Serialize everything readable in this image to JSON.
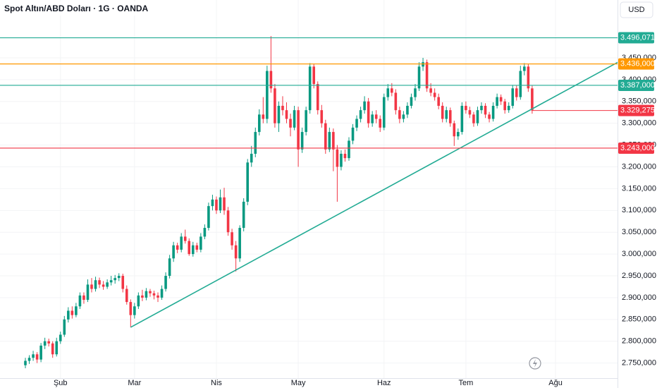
{
  "chart_data": {
    "type": "candlestick",
    "title": "Spot Altın/ABD Doları · 1G · OANDA",
    "currency": "USD",
    "up_color": "#089981",
    "down_color": "#f23645",
    "ylim": [
      2715.4,
      3582.7
    ],
    "xlim": [
      -6.51,
      151.9
    ],
    "yticks": [
      {
        "value": 2750,
        "label": "2.750,000"
      },
      {
        "value": 2800,
        "label": "2.800,000"
      },
      {
        "value": 2850,
        "label": "2.850,000"
      },
      {
        "value": 2900,
        "label": "2.900,000"
      },
      {
        "value": 2950,
        "label": "2.950,000"
      },
      {
        "value": 3000,
        "label": "3.000,000"
      },
      {
        "value": 3050,
        "label": "3.050,000"
      },
      {
        "value": 3100,
        "label": "3.100,000"
      },
      {
        "value": 3150,
        "label": "3.150,000"
      },
      {
        "value": 3200,
        "label": "3.200,000"
      },
      {
        "value": 3250,
        "label": "3.250,000"
      },
      {
        "value": 3300,
        "label": "3.300,000"
      },
      {
        "value": 3350,
        "label": "3.350,000"
      },
      {
        "value": 3400,
        "label": "3.400,000"
      },
      {
        "value": 3450,
        "label": "3.450,000"
      }
    ],
    "xlabels": [
      {
        "index": 9,
        "label": "Şub"
      },
      {
        "index": 28,
        "label": "Mar"
      },
      {
        "index": 49,
        "label": "Nis"
      },
      {
        "index": 70,
        "label": "May"
      },
      {
        "index": 92,
        "label": "Haz"
      },
      {
        "index": 113,
        "label": "Tem"
      },
      {
        "index": 136,
        "label": "Ağu"
      }
    ],
    "levels": [
      {
        "value": 3496.071,
        "label": "3.496,071",
        "color": "#22ab94"
      },
      {
        "value": 3436,
        "label": "3.436,000",
        "color": "#ff9800"
      },
      {
        "value": 3387,
        "label": "3.387,000",
        "color": "#22ab94"
      },
      {
        "value": 3243,
        "label": "3.243,000",
        "color": "#f23645"
      }
    ],
    "last_price": {
      "value": 3329.275,
      "label": "3.329,275",
      "color": "#f23645"
    },
    "trendline": {
      "from": {
        "index": 27,
        "price": 2832
      },
      "to": {
        "index": 152,
        "price": 3440
      },
      "color": "#22ab94"
    },
    "candles": [
      [
        2745,
        2762,
        2738,
        2755
      ],
      [
        2755,
        2768,
        2748,
        2762
      ],
      [
        2762,
        2778,
        2755,
        2770
      ],
      [
        2770,
        2775,
        2750,
        2758
      ],
      [
        2758,
        2796,
        2752,
        2790
      ],
      [
        2790,
        2808,
        2782,
        2800
      ],
      [
        2800,
        2806,
        2788,
        2795
      ],
      [
        2795,
        2800,
        2762,
        2770
      ],
      [
        2770,
        2808,
        2765,
        2800
      ],
      [
        2800,
        2822,
        2794,
        2815
      ],
      [
        2815,
        2858,
        2810,
        2850
      ],
      [
        2850,
        2878,
        2843,
        2870
      ],
      [
        2870,
        2880,
        2852,
        2860
      ],
      [
        2860,
        2888,
        2855,
        2880
      ],
      [
        2880,
        2912,
        2874,
        2905
      ],
      [
        2905,
        2912,
        2886,
        2895
      ],
      [
        2895,
        2942,
        2890,
        2930
      ],
      [
        2930,
        2945,
        2912,
        2920
      ],
      [
        2920,
        2948,
        2914,
        2940
      ],
      [
        2940,
        2946,
        2922,
        2930
      ],
      [
        2930,
        2938,
        2918,
        2925
      ],
      [
        2925,
        2942,
        2920,
        2935
      ],
      [
        2935,
        2950,
        2928,
        2940
      ],
      [
        2940,
        2952,
        2932,
        2945
      ],
      [
        2945,
        2956,
        2938,
        2950
      ],
      [
        2950,
        2955,
        2912,
        2920
      ],
      [
        2920,
        2928,
        2884,
        2890
      ],
      [
        2890,
        2896,
        2832,
        2860
      ],
      [
        2860,
        2888,
        2852,
        2880
      ],
      [
        2880,
        2912,
        2874,
        2905
      ],
      [
        2905,
        2918,
        2892,
        2900
      ],
      [
        2900,
        2922,
        2894,
        2915
      ],
      [
        2915,
        2920,
        2902,
        2910
      ],
      [
        2910,
        2916,
        2896,
        2905
      ],
      [
        2905,
        2912,
        2890,
        2900
      ],
      [
        2900,
        2928,
        2895,
        2920
      ],
      [
        2920,
        2958,
        2914,
        2950
      ],
      [
        2950,
        2998,
        2944,
        2990
      ],
      [
        2990,
        3028,
        2982,
        3020
      ],
      [
        3020,
        3026,
        3002,
        3010
      ],
      [
        3010,
        3048,
        3004,
        3040
      ],
      [
        3040,
        3056,
        3024,
        3030
      ],
      [
        3030,
        3036,
        2996,
        3000
      ],
      [
        3000,
        3028,
        2994,
        3020
      ],
      [
        3020,
        3026,
        3004,
        3010
      ],
      [
        3010,
        3048,
        3004,
        3040
      ],
      [
        3040,
        3068,
        3034,
        3060
      ],
      [
        3060,
        3118,
        3054,
        3110
      ],
      [
        3110,
        3136,
        3100,
        3125
      ],
      [
        3125,
        3132,
        3092,
        3100
      ],
      [
        3100,
        3148,
        3094,
        3130
      ],
      [
        3130,
        3152,
        3090,
        3100
      ],
      [
        3100,
        3108,
        3042,
        3050
      ],
      [
        3050,
        3058,
        3010,
        3020
      ],
      [
        3020,
        3030,
        2960,
        2990
      ],
      [
        2990,
        3066,
        2982,
        3060
      ],
      [
        3060,
        3128,
        3052,
        3120
      ],
      [
        3120,
        3218,
        3112,
        3210
      ],
      [
        3210,
        3248,
        3200,
        3230
      ],
      [
        3230,
        3290,
        3222,
        3280
      ],
      [
        3280,
        3332,
        3272,
        3320
      ],
      [
        3320,
        3360,
        3300,
        3310
      ],
      [
        3310,
        3432,
        3300,
        3420
      ],
      [
        3420,
        3500,
        3370,
        3380
      ],
      [
        3380,
        3390,
        3290,
        3300
      ],
      [
        3300,
        3350,
        3280,
        3340
      ],
      [
        3340,
        3362,
        3318,
        3330
      ],
      [
        3330,
        3348,
        3300,
        3310
      ],
      [
        3310,
        3322,
        3270,
        3290
      ],
      [
        3290,
        3340,
        3284,
        3330
      ],
      [
        3330,
        3338,
        3200,
        3240
      ],
      [
        3240,
        3290,
        3232,
        3280
      ],
      [
        3280,
        3338,
        3272,
        3330
      ],
      [
        3330,
        3438,
        3322,
        3430
      ],
      [
        3430,
        3436,
        3380,
        3390
      ],
      [
        3390,
        3396,
        3320,
        3330
      ],
      [
        3330,
        3342,
        3290,
        3300
      ],
      [
        3300,
        3308,
        3230,
        3240
      ],
      [
        3240,
        3290,
        3234,
        3280
      ],
      [
        3280,
        3288,
        3190,
        3240
      ],
      [
        3240,
        3250,
        3120,
        3200
      ],
      [
        3200,
        3238,
        3192,
        3230
      ],
      [
        3230,
        3240,
        3212,
        3220
      ],
      [
        3220,
        3268,
        3214,
        3260
      ],
      [
        3260,
        3298,
        3252,
        3290
      ],
      [
        3290,
        3318,
        3282,
        3310
      ],
      [
        3310,
        3338,
        3302,
        3330
      ],
      [
        3330,
        3362,
        3322,
        3350
      ],
      [
        3350,
        3358,
        3290,
        3300
      ],
      [
        3300,
        3328,
        3292,
        3320
      ],
      [
        3320,
        3330,
        3300,
        3310
      ],
      [
        3310,
        3318,
        3280,
        3290
      ],
      [
        3290,
        3368,
        3284,
        3360
      ],
      [
        3360,
        3390,
        3352,
        3380
      ],
      [
        3380,
        3392,
        3362,
        3370
      ],
      [
        3370,
        3378,
        3320,
        3330
      ],
      [
        3330,
        3338,
        3300,
        3310
      ],
      [
        3310,
        3328,
        3302,
        3320
      ],
      [
        3320,
        3348,
        3312,
        3340
      ],
      [
        3340,
        3368,
        3334,
        3360
      ],
      [
        3360,
        3390,
        3352,
        3380
      ],
      [
        3380,
        3440,
        3374,
        3430
      ],
      [
        3430,
        3450,
        3420,
        3440
      ],
      [
        3440,
        3446,
        3372,
        3380
      ],
      [
        3380,
        3392,
        3362,
        3370
      ],
      [
        3370,
        3380,
        3352,
        3360
      ],
      [
        3360,
        3368,
        3332,
        3340
      ],
      [
        3340,
        3348,
        3302,
        3310
      ],
      [
        3310,
        3338,
        3302,
        3330
      ],
      [
        3330,
        3336,
        3292,
        3300
      ],
      [
        3300,
        3306,
        3248,
        3270
      ],
      [
        3270,
        3288,
        3262,
        3280
      ],
      [
        3280,
        3348,
        3274,
        3340
      ],
      [
        3340,
        3350,
        3322,
        3330
      ],
      [
        3330,
        3338,
        3312,
        3320
      ],
      [
        3320,
        3326,
        3292,
        3300
      ],
      [
        3300,
        3338,
        3294,
        3330
      ],
      [
        3330,
        3348,
        3322,
        3340
      ],
      [
        3340,
        3346,
        3312,
        3320
      ],
      [
        3320,
        3326,
        3302,
        3310
      ],
      [
        3310,
        3348,
        3304,
        3340
      ],
      [
        3340,
        3368,
        3334,
        3360
      ],
      [
        3360,
        3366,
        3342,
        3350
      ],
      [
        3350,
        3356,
        3322,
        3330
      ],
      [
        3330,
        3348,
        3324,
        3340
      ],
      [
        3340,
        3388,
        3334,
        3380
      ],
      [
        3380,
        3386,
        3352,
        3360
      ],
      [
        3360,
        3432,
        3354,
        3420
      ],
      [
        3420,
        3438,
        3410,
        3430
      ],
      [
        3430,
        3436,
        3372,
        3380
      ],
      [
        3380,
        3386,
        3322,
        3329.275
      ]
    ]
  }
}
